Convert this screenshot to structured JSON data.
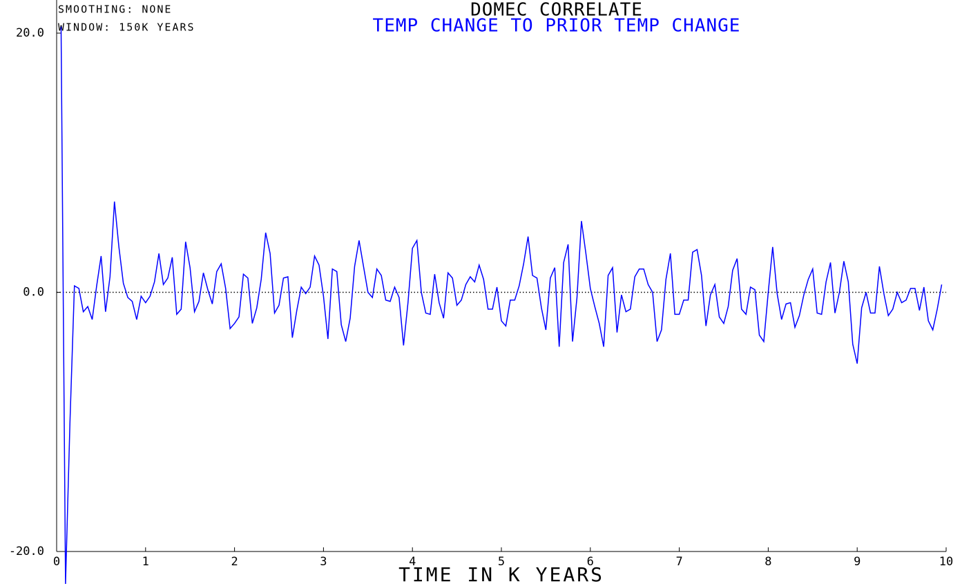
{
  "chart_data": {
    "type": "line",
    "title": "DOMEC CORRELATE",
    "subtitle": "TEMP CHANGE TO PRIOR TEMP CHANGE",
    "annotations": [
      "SMOOTHING: NONE",
      "WINDOW: 150K YEARS"
    ],
    "x_label": "TIME IN K YEARS",
    "xlim": [
      0,
      10
    ],
    "xticks": [
      0,
      1,
      2,
      3,
      4,
      5,
      6,
      7,
      8,
      9,
      10
    ],
    "ylim": [
      -20,
      20
    ],
    "yticks": [
      {
        "value": 20,
        "label": "20.0"
      },
      {
        "value": 0,
        "label": "0.0"
      },
      {
        "value": -20,
        "label": "-20.0"
      }
    ],
    "reference_lines": [
      0
    ],
    "x": [
      0.05,
      0.1,
      0.15,
      0.2,
      0.25,
      0.3,
      0.35,
      0.4,
      0.45,
      0.5,
      0.55,
      0.6,
      0.65,
      0.7,
      0.75,
      0.8,
      0.85,
      0.9,
      0.95,
      1.0,
      1.05,
      1.1,
      1.15,
      1.2,
      1.25,
      1.3,
      1.35,
      1.4,
      1.45,
      1.5,
      1.55,
      1.6,
      1.65,
      1.7,
      1.75,
      1.8,
      1.85,
      1.9,
      1.95,
      2.0,
      2.05,
      2.1,
      2.15,
      2.2,
      2.25,
      2.3,
      2.35,
      2.4,
      2.45,
      2.5,
      2.55,
      2.6,
      2.65,
      2.7,
      2.75,
      2.8,
      2.85,
      2.9,
      2.95,
      3.0,
      3.05,
      3.1,
      3.15,
      3.2,
      3.25,
      3.3,
      3.35,
      3.4,
      3.45,
      3.5,
      3.55,
      3.6,
      3.65,
      3.7,
      3.75,
      3.8,
      3.85,
      3.9,
      3.95,
      4.0,
      4.05,
      4.1,
      4.15,
      4.2,
      4.25,
      4.3,
      4.35,
      4.4,
      4.45,
      4.5,
      4.55,
      4.6,
      4.65,
      4.7,
      4.75,
      4.8,
      4.85,
      4.9,
      4.95,
      5.0,
      5.05,
      5.1,
      5.15,
      5.2,
      5.25,
      5.3,
      5.35,
      5.4,
      5.45,
      5.5,
      5.55,
      5.6,
      5.65,
      5.7,
      5.75,
      5.8,
      5.85,
      5.9,
      5.95,
      6.0,
      6.05,
      6.1,
      6.15,
      6.2,
      6.25,
      6.3,
      6.35,
      6.4,
      6.45,
      6.5,
      6.55,
      6.6,
      6.65,
      6.7,
      6.75,
      6.8,
      6.85,
      6.9,
      6.95,
      7.0,
      7.05,
      7.1,
      7.15,
      7.2,
      7.25,
      7.3,
      7.35,
      7.4,
      7.45,
      7.5,
      7.55,
      7.6,
      7.65,
      7.7,
      7.75,
      7.8,
      7.85,
      7.9,
      7.95,
      8.0,
      8.05,
      8.1,
      8.15,
      8.2,
      8.25,
      8.3,
      8.35,
      8.4,
      8.45,
      8.5,
      8.55,
      8.6,
      8.65,
      8.7,
      8.75,
      8.8,
      8.85,
      8.9,
      8.95,
      9.0,
      9.05,
      9.1,
      9.15,
      9.2,
      9.25,
      9.3,
      9.35,
      9.4,
      9.45,
      9.5,
      9.55,
      9.6,
      9.65,
      9.7,
      9.75,
      9.8,
      9.85,
      9.9,
      9.95
    ],
    "series": [
      {
        "color": "#0000ff",
        "values": [
          20.5,
          -22.5,
          -10,
          0.5,
          0.3,
          -1.5,
          -1.1,
          -2.1,
          0.5,
          2.8,
          -1.5,
          1.2,
          7.0,
          3.5,
          0.7,
          -0.4,
          -0.7,
          -2.1,
          -0.3,
          -0.8,
          -0.3,
          0.8,
          3.0,
          0.6,
          1.1,
          2.7,
          -1.7,
          -1.3,
          3.9,
          1.9,
          -1.5,
          -0.7,
          1.5,
          0.2,
          -0.9,
          1.6,
          2.2,
          0.3,
          -2.8,
          -2.4,
          -1.9,
          1.4,
          1.1,
          -2.4,
          -1.2,
          1.0,
          4.6,
          3.0,
          -1.6,
          -1.0,
          1.1,
          1.2,
          -3.5,
          -1.4,
          0.4,
          -0.1,
          0.4,
          2.8,
          2.1,
          -0.3,
          -3.6,
          1.8,
          1.6,
          -2.5,
          -3.8,
          -2.0,
          2.0,
          4.0,
          2.0,
          0.0,
          -0.4,
          1.8,
          1.3,
          -0.6,
          -0.7,
          0.4,
          -0.4,
          -4.1,
          -0.8,
          3.4,
          4.0,
          0.0,
          -1.6,
          -1.7,
          1.4,
          -0.8,
          -2.0,
          1.5,
          1.1,
          -1.0,
          -0.6,
          0.6,
          1.2,
          0.8,
          2.1,
          1.0,
          -1.3,
          -1.3,
          0.4,
          -2.2,
          -2.6,
          -0.6,
          -0.6,
          0.5,
          2.2,
          4.3,
          1.3,
          1.1,
          -1.2,
          -2.9,
          1.1,
          1.9,
          -4.2,
          2.3,
          3.7,
          -3.8,
          -0.4,
          5.5,
          3.0,
          0.3,
          -1.1,
          -2.4,
          -4.2,
          1.3,
          1.9,
          -3.1,
          -0.2,
          -1.5,
          -1.3,
          1.2,
          1.8,
          1.8,
          0.6,
          0.0,
          -3.8,
          -2.9,
          1.0,
          3.0,
          -1.7,
          -1.7,
          -0.6,
          -0.6,
          3.1,
          3.3,
          1.3,
          -2.6,
          -0.2,
          0.6,
          -1.9,
          -2.4,
          -1.1,
          1.7,
          2.6,
          -1.3,
          -1.7,
          0.4,
          0.2,
          -3.3,
          -3.8,
          0.0,
          3.5,
          -0.1,
          -2.1,
          -0.9,
          -0.8,
          -2.7,
          -1.8,
          -0.2,
          1.0,
          1.8,
          -1.6,
          -1.7,
          0.8,
          2.3,
          -1.6,
          0.0,
          2.4,
          0.8,
          -4.0,
          -5.5,
          -1.2,
          0.0,
          -1.6,
          -1.6,
          2.0,
          -0.1,
          -1.8,
          -1.3,
          0.0,
          -0.8,
          -0.6,
          0.3,
          0.3,
          -1.4,
          0.4,
          -2.2,
          -2.9,
          -1.3,
          0.6
        ]
      }
    ]
  }
}
